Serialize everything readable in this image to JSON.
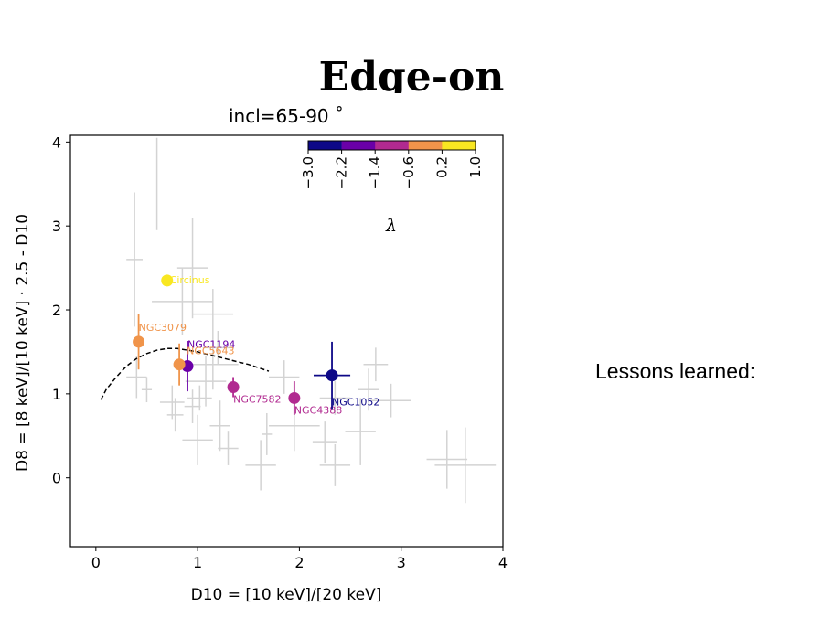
{
  "slide": {
    "title": "Edge-on",
    "side_note": "Lessons learned:"
  },
  "chart_data": {
    "type": "scatter",
    "title": "incl=65-90$^\\circ$",
    "title_display": "incl=65-90 ˚",
    "xlabel": "D10 = [10 keV]/[20 keV]",
    "ylabel": "D8 = [8 keV]/[10 keV] · 2.5 - D10",
    "xlim": [
      -0.25,
      4.0
    ],
    "ylim": [
      -0.82,
      4.08
    ],
    "xticks": [
      "0",
      "1",
      "2",
      "3",
      "4"
    ],
    "yticks": [
      "0",
      "1",
      "2",
      "3",
      "4"
    ],
    "grid": false,
    "colorbar": {
      "label": "λ",
      "placement": "top-right inset",
      "ticks": [
        "−3.0",
        "−2.2",
        "−1.4",
        "−0.6",
        "0.2",
        "1.0"
      ],
      "colors": [
        "#0d0887",
        "#6a00a8",
        "#b12a90",
        "#e16462",
        "#f89540",
        "#f0f921"
      ],
      "bands": [
        "#0d0887",
        "#6a00a8",
        "#b12a90",
        "#f0944a",
        "#f9e721"
      ]
    },
    "model_curve": {
      "style": "dashed",
      "color": "#000000",
      "points": [
        [
          0.05,
          0.93
        ],
        [
          0.1,
          1.05
        ],
        [
          0.2,
          1.2
        ],
        [
          0.3,
          1.33
        ],
        [
          0.4,
          1.42
        ],
        [
          0.5,
          1.48
        ],
        [
          0.6,
          1.52
        ],
        [
          0.7,
          1.54
        ],
        [
          0.8,
          1.54
        ],
        [
          0.9,
          1.52
        ],
        [
          1.0,
          1.5
        ],
        [
          1.1,
          1.47
        ],
        [
          1.2,
          1.44
        ],
        [
          1.3,
          1.41
        ],
        [
          1.4,
          1.38
        ],
        [
          1.5,
          1.35
        ],
        [
          1.6,
          1.31
        ],
        [
          1.7,
          1.27
        ]
      ]
    },
    "background_points": {
      "color": "#d3d3d3",
      "points": [
        {
          "x": 0.6,
          "y": 3.5,
          "xerr": 0.0,
          "yerr": 0.55
        },
        {
          "x": 0.38,
          "y": 2.6,
          "xerr": 0.08,
          "yerr": 0.8
        },
        {
          "x": 0.95,
          "y": 2.5,
          "xerr": 0.15,
          "yerr": 0.6
        },
        {
          "x": 0.85,
          "y": 2.1,
          "xerr": 0.3,
          "yerr": 0.4
        },
        {
          "x": 1.15,
          "y": 1.95,
          "xerr": 0.2,
          "yerr": 0.3
        },
        {
          "x": 0.4,
          "y": 1.2,
          "xerr": 0.1,
          "yerr": 0.25
        },
        {
          "x": 0.5,
          "y": 1.05,
          "xerr": 0.05,
          "yerr": 0.15
        },
        {
          "x": 0.75,
          "y": 0.9,
          "xerr": 0.12,
          "yerr": 0.2
        },
        {
          "x": 0.78,
          "y": 0.75,
          "xerr": 0.08,
          "yerr": 0.2
        },
        {
          "x": 0.95,
          "y": 0.85,
          "xerr": 0.08,
          "yerr": 0.2
        },
        {
          "x": 1.02,
          "y": 0.95,
          "xerr": 0.12,
          "yerr": 0.15
        },
        {
          "x": 1.08,
          "y": 1.15,
          "xerr": 0.2,
          "yerr": 0.3
        },
        {
          "x": 1.15,
          "y": 1.35,
          "xerr": 0.25,
          "yerr": 0.3
        },
        {
          "x": 1.2,
          "y": 1.55,
          "xerr": 0.15,
          "yerr": 0.2
        },
        {
          "x": 1.0,
          "y": 0.45,
          "xerr": 0.15,
          "yerr": 0.3
        },
        {
          "x": 1.22,
          "y": 0.62,
          "xerr": 0.1,
          "yerr": 0.3
        },
        {
          "x": 1.3,
          "y": 0.35,
          "xerr": 0.1,
          "yerr": 0.2
        },
        {
          "x": 1.68,
          "y": 0.52,
          "xerr": 0.05,
          "yerr": 0.25
        },
        {
          "x": 1.62,
          "y": 0.15,
          "xerr": 0.15,
          "yerr": 0.3
        },
        {
          "x": 1.85,
          "y": 1.2,
          "xerr": 0.15,
          "yerr": 0.2
        },
        {
          "x": 1.95,
          "y": 0.62,
          "xerr": 0.25,
          "yerr": 0.3
        },
        {
          "x": 2.25,
          "y": 0.42,
          "xerr": 0.12,
          "yerr": 0.25
        },
        {
          "x": 2.35,
          "y": 0.15,
          "xerr": 0.15,
          "yerr": 0.25
        },
        {
          "x": 2.35,
          "y": 0.95,
          "xerr": 0.15,
          "yerr": 0.2
        },
        {
          "x": 2.6,
          "y": 0.55,
          "xerr": 0.15,
          "yerr": 0.4
        },
        {
          "x": 2.75,
          "y": 1.35,
          "xerr": 0.12,
          "yerr": 0.2
        },
        {
          "x": 2.68,
          "y": 1.05,
          "xerr": 0.1,
          "yerr": 0.25
        },
        {
          "x": 2.9,
          "y": 0.92,
          "xerr": 0.2,
          "yerr": 0.2
        },
        {
          "x": 3.45,
          "y": 0.22,
          "xerr": 0.2,
          "yerr": 0.35
        },
        {
          "x": 3.63,
          "y": 0.15,
          "xerr": 0.3,
          "yerr": 0.45
        }
      ]
    },
    "labeled_points": [
      {
        "name": "Circinus",
        "x": 0.7,
        "y": 2.35,
        "xerr": 0.0,
        "yerr": 0.0,
        "color": "#f9e721"
      },
      {
        "name": "NGC3079",
        "x": 0.42,
        "y": 1.62,
        "xerr": 0.0,
        "yerr": 0.33,
        "color": "#f0944a"
      },
      {
        "name": "NGC1194",
        "x": 0.9,
        "y": 1.33,
        "xerr": 0.05,
        "yerr": 0.3,
        "color": "#6a00a8"
      },
      {
        "name": "NGC5643",
        "x": 0.82,
        "y": 1.35,
        "xerr": 0.0,
        "yerr": 0.25,
        "color": "#f0944a"
      },
      {
        "name": "NGC7582",
        "x": 1.35,
        "y": 1.08,
        "xerr": 0.0,
        "yerr": 0.12,
        "color": "#b12a90"
      },
      {
        "name": "NGC4388",
        "x": 1.95,
        "y": 0.95,
        "xerr": 0.0,
        "yerr": 0.2,
        "color": "#b12a90"
      },
      {
        "name": "NGC1052",
        "x": 2.32,
        "y": 1.22,
        "xerr": 0.18,
        "yerr": 0.4,
        "color": "#0d0887"
      }
    ]
  }
}
